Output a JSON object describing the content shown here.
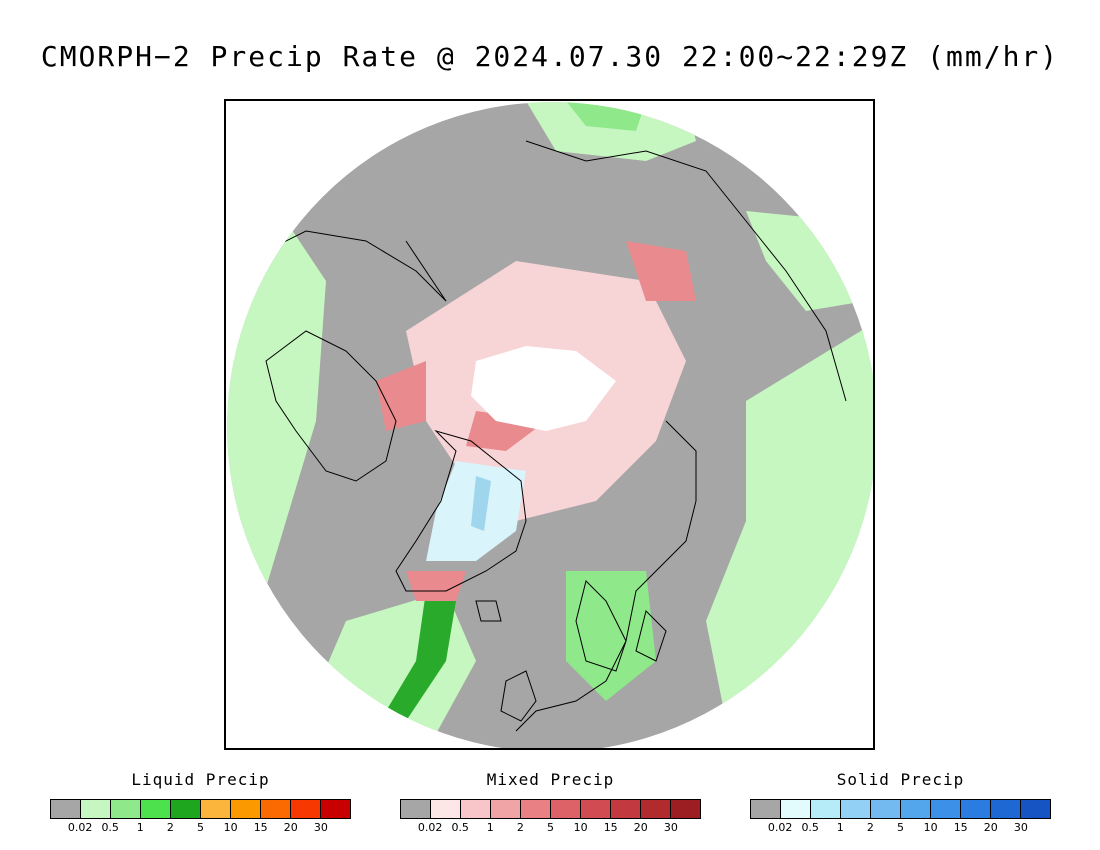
{
  "title": "CMORPH−2 Precip Rate @ 2024.07.30 22:00~22:29Z (mm/hr)",
  "map": {
    "projection": "north-polar-stereographic",
    "colors": {
      "no_precip": "#a6a6a6",
      "liquid_light": "#c6f7c0",
      "liquid_mid": "#8fe88a",
      "liquid_heavy": "#2aaa2a",
      "mixed_light": "#f7d4d6",
      "mixed_mid": "#e88a8e",
      "solid_light": "#d9f4fb",
      "solid_mid": "#9fd6ee",
      "no_data": "#ffffff",
      "coastline": "#000000"
    }
  },
  "legends": [
    {
      "title": "Liquid Precip",
      "colors": [
        "#a6a6a6",
        "#c6f7c0",
        "#8fe88a",
        "#4de24d",
        "#1fa61f",
        "#fbb53d",
        "#fb9a00",
        "#fb6a00",
        "#f73800",
        "#c80000"
      ],
      "ticks": [
        "0.02",
        "0.5",
        "1",
        "2",
        "5",
        "10",
        "15",
        "20",
        "30"
      ]
    },
    {
      "title": "Mixed Precip",
      "colors": [
        "#a6a6a6",
        "#fde6e6",
        "#f8c6c8",
        "#f0a4a6",
        "#e88084",
        "#dc6268",
        "#d04c52",
        "#c23a40",
        "#b02a2e",
        "#9c1e22"
      ],
      "ticks": [
        "0.02",
        "0.5",
        "1",
        "2",
        "5",
        "10",
        "15",
        "20",
        "30"
      ]
    },
    {
      "title": "Solid Precip",
      "colors": [
        "#a6a6a6",
        "#e2fbfd",
        "#b6ecf7",
        "#92d0f5",
        "#72baf0",
        "#54a6ec",
        "#3c90e8",
        "#2a7ce0",
        "#1e68d4",
        "#1654c4"
      ],
      "ticks": [
        "0.02",
        "0.5",
        "1",
        "2",
        "5",
        "10",
        "15",
        "20",
        "30"
      ]
    }
  ]
}
